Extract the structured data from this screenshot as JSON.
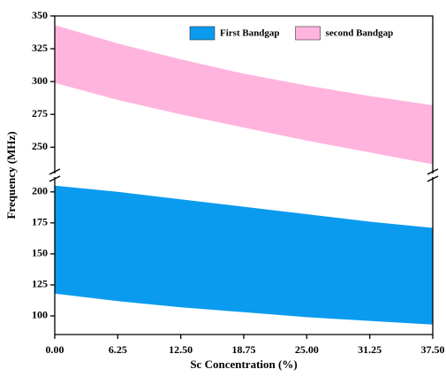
{
  "chart_data": {
    "type": "range_area",
    "x_label": "Sc Concentration (%)",
    "y_label": "Frequency (MHz)",
    "x": [
      0,
      6.25,
      12.5,
      18.75,
      25,
      31.25,
      37.5
    ],
    "series": [
      {
        "name": "First Bandgap",
        "color": "#0a9bef",
        "lower": [
          118,
          112,
          107,
          103,
          99,
          96,
          93
        ],
        "upper": [
          205,
          200,
          194,
          188,
          182,
          176,
          171
        ]
      },
      {
        "name": "second Bandgap",
        "color": "#ffb4de",
        "lower": [
          299,
          286,
          275,
          265,
          255,
          246,
          237
        ],
        "upper": [
          343,
          329,
          317,
          306,
          297,
          289,
          282
        ]
      }
    ],
    "xlim": [
      0,
      37.5
    ],
    "xticks": [
      {
        "value": 0,
        "label": "0.00"
      },
      {
        "value": 6.25,
        "label": "6.25"
      },
      {
        "value": 12.5,
        "label": "12.50"
      },
      {
        "value": 18.75,
        "label": "18.75"
      },
      {
        "value": 25,
        "label": "25.00"
      },
      {
        "value": 31.25,
        "label": "31.25"
      },
      {
        "value": 37.5,
        "label": "37.50"
      }
    ],
    "ylim": [
      85,
      350
    ],
    "y_break": [
      212,
      230
    ],
    "yticks": [
      100,
      125,
      150,
      175,
      200,
      250,
      275,
      300,
      325,
      350
    ],
    "legend": "upper right",
    "grid": false
  }
}
